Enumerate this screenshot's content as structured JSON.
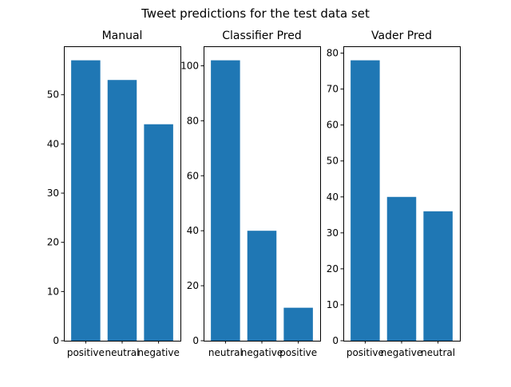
{
  "figure": {
    "suptitle": "Tweet predictions for the test data set",
    "bar_color": "#1f77b4"
  },
  "chart_data": [
    {
      "type": "bar",
      "title": "Manual",
      "xlabel": "",
      "ylabel": "",
      "categories": [
        "positive",
        "neutral",
        "negative"
      ],
      "values": [
        57,
        53,
        44
      ],
      "ylim": [
        0,
        59.85
      ],
      "yticks": [
        0,
        10,
        20,
        30,
        40,
        50
      ],
      "grid": false
    },
    {
      "type": "bar",
      "title": "Classifier Pred",
      "xlabel": "",
      "ylabel": "",
      "categories": [
        "neutral",
        "negative",
        "positive"
      ],
      "values": [
        102,
        40,
        12
      ],
      "ylim": [
        0,
        107.1
      ],
      "yticks": [
        0,
        20,
        40,
        60,
        80,
        100
      ],
      "grid": false
    },
    {
      "type": "bar",
      "title": "Vader Pred",
      "xlabel": "",
      "ylabel": "",
      "categories": [
        "positive",
        "negative",
        "neutral"
      ],
      "values": [
        78,
        40,
        36
      ],
      "ylim": [
        0,
        81.9
      ],
      "yticks": [
        0,
        10,
        20,
        30,
        40,
        50,
        60,
        70,
        80
      ],
      "grid": false
    }
  ]
}
